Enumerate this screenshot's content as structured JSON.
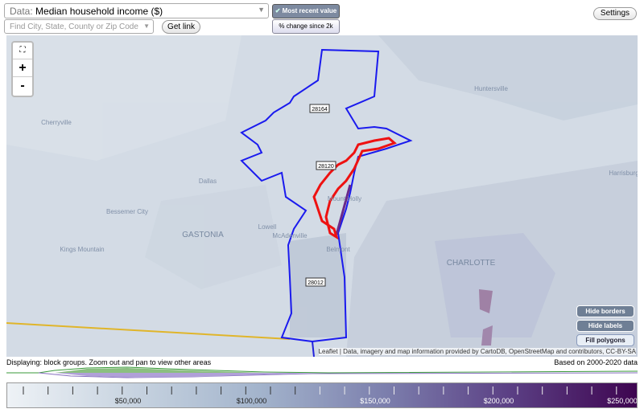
{
  "toolbar": {
    "data_prefix": "Data:",
    "data_select": "Median household income ($)",
    "search_placeholder": "Find City, State, County or Zip Code",
    "get_link": "Get link",
    "toggle_recent": "Most recent value",
    "toggle_change": "% change since 2k",
    "settings": "Settings"
  },
  "map": {
    "zoom_in": "+",
    "zoom_out": "-",
    "places": [
      "Cherryville",
      "Dallas",
      "Bessemer City",
      "GASTONIA",
      "Lowell",
      "McAdenville",
      "Kings Mountain",
      "Belmont",
      "Mount Holly",
      "Huntersville",
      "Harrisburg",
      "CHARLOTTE"
    ],
    "zip_labels": [
      "28164",
      "28120",
      "28012"
    ],
    "buttons": [
      "Hide borders",
      "Hide labels",
      "Fill polygons"
    ],
    "attribution": "Leaflet | Data, imagery and map information provided by CartoDB, OpenStreetMap and contributors, CC-BY-SA"
  },
  "status": {
    "displaying": "Displaying: block groups. Zoom out and pan to view other areas",
    "based_on": "Based on 2000-2020 data"
  },
  "legend": {
    "ticks": [
      "$50,000",
      "$100,000",
      "$150,000",
      "$200,000",
      "$250,000"
    ]
  }
}
